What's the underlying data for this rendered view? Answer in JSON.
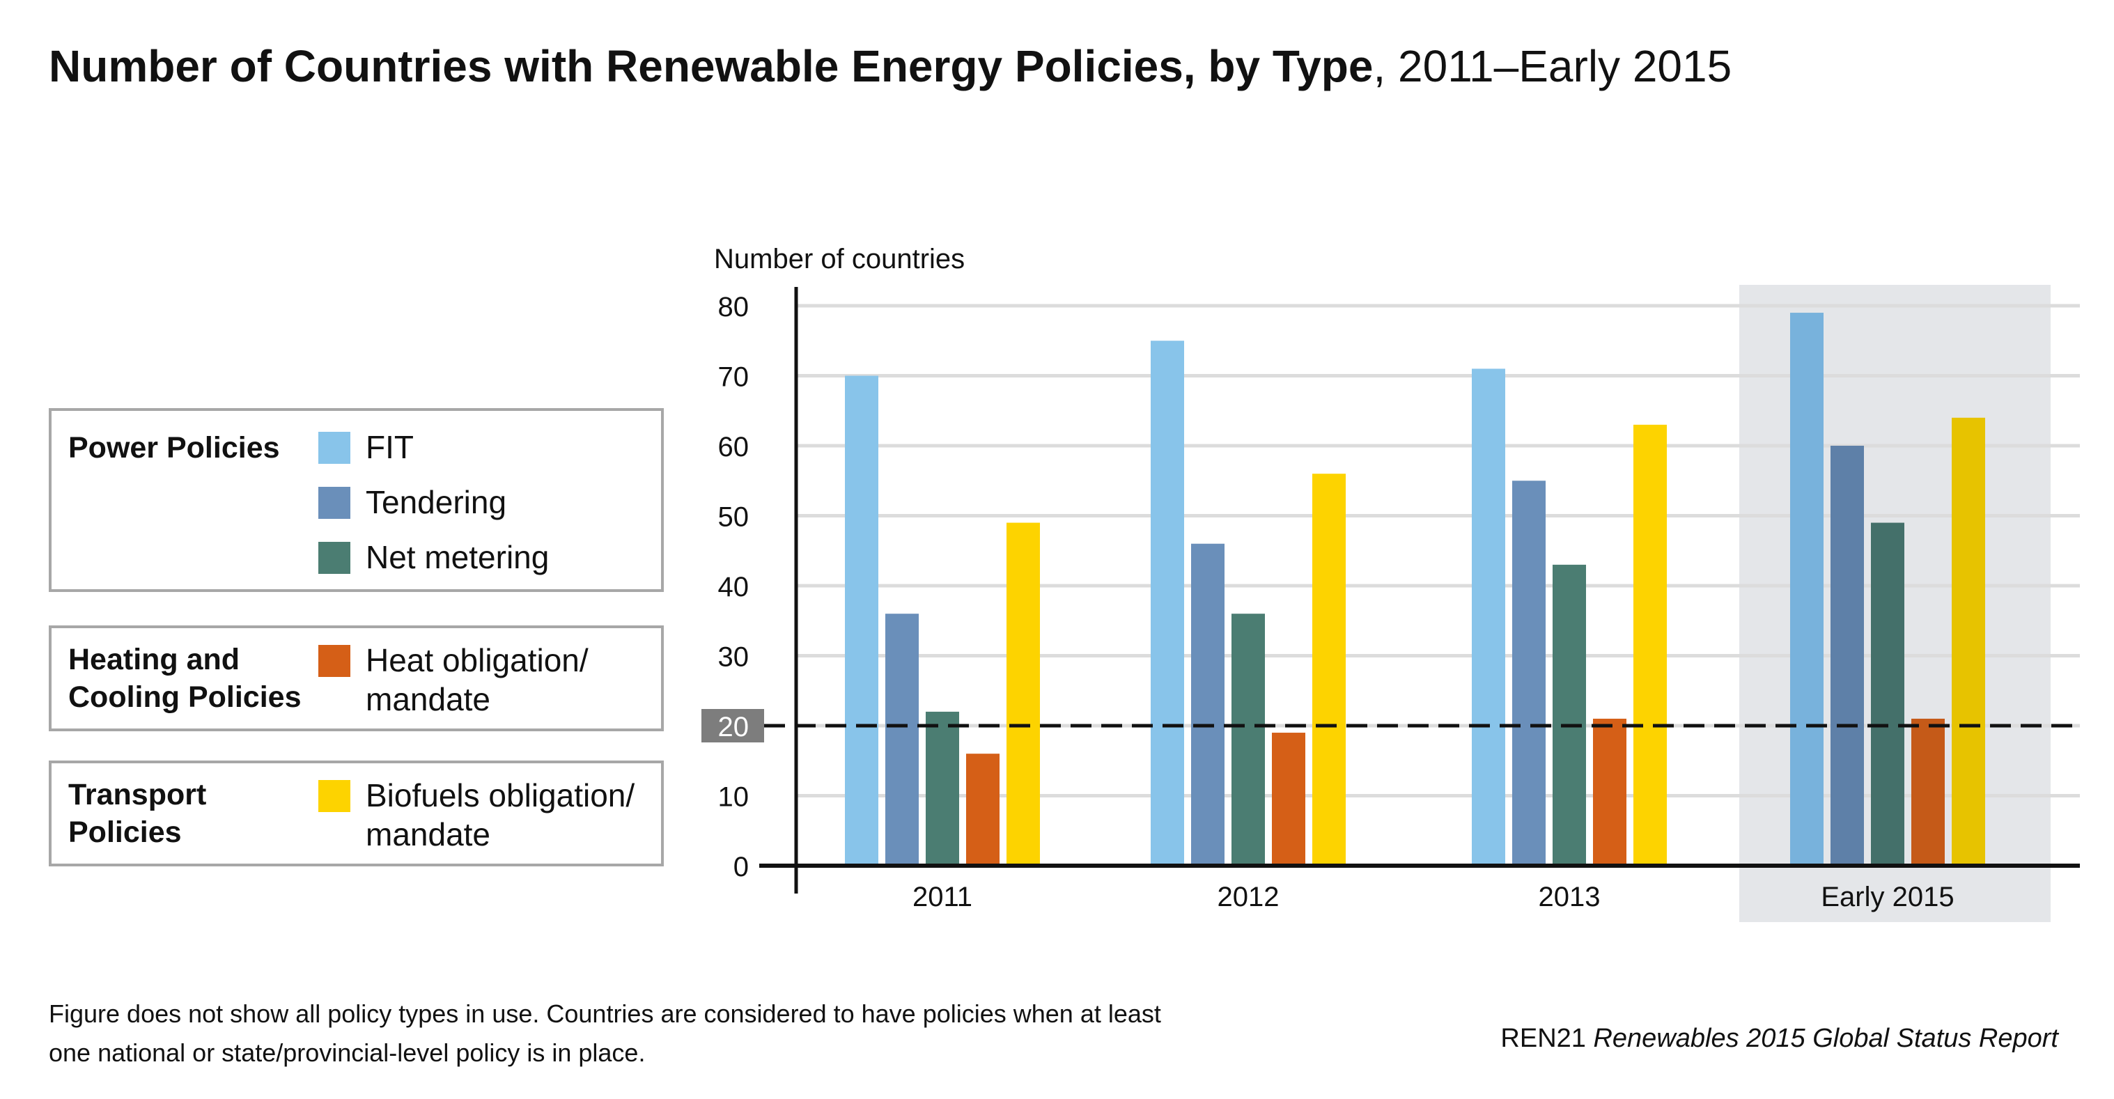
{
  "title": {
    "bold": "Number of Countries with Renewable Energy Policies, by Type",
    "light": ", 2011–Early 2015"
  },
  "legend": {
    "power": {
      "title": "Power Policies",
      "items": [
        {
          "label": "FIT",
          "color": "#88c4ea"
        },
        {
          "label": "Tendering",
          "color": "#6a8fba"
        },
        {
          "label": "Net metering",
          "color": "#4b7d72"
        }
      ]
    },
    "heating": {
      "title": "Heating and Cooling Policies",
      "item": {
        "label": "Heat obligation/ mandate",
        "color": "#d55f17"
      }
    },
    "transport": {
      "title": "Transport Policies",
      "item": {
        "label": "Biofuels obligation/ mandate",
        "color": "#fdd300"
      }
    }
  },
  "chart_data": {
    "type": "bar",
    "ylabel": "Number of countries",
    "ylim": [
      0,
      80
    ],
    "yticks": [
      0,
      10,
      20,
      30,
      40,
      50,
      60,
      70,
      80
    ],
    "grid": true,
    "reference_line": {
      "value": 20,
      "style": "dashed"
    },
    "highlighted_category": "Early 2015",
    "categories": [
      "2011",
      "2012",
      "2013",
      "Early 2015"
    ],
    "series": [
      {
        "name": "FIT",
        "color": "#88c4ea",
        "highlight_color": "#78b2dc",
        "values": [
          70,
          75,
          71,
          79
        ]
      },
      {
        "name": "Tendering",
        "color": "#6a8fba",
        "highlight_color": "#5e80a8",
        "values": [
          36,
          46,
          55,
          60
        ]
      },
      {
        "name": "Net metering",
        "color": "#4b7d72",
        "highlight_color": "#44706a",
        "values": [
          22,
          36,
          43,
          49
        ]
      },
      {
        "name": "Heat obligation/mandate",
        "color": "#d55f17",
        "highlight_color": "#c55a18",
        "values": [
          16,
          19,
          21,
          21
        ]
      },
      {
        "name": "Biofuels obligation/mandate",
        "color": "#fdd300",
        "highlight_color": "#e7c300",
        "values": [
          49,
          56,
          63,
          64
        ]
      }
    ]
  },
  "footnote": "Figure does not show all policy types in use. Countries are considered to have policies when at least one national or state/provincial-level policy is in place.",
  "source": {
    "prefix": "REN21 ",
    "italic": "Renewables 2015 Global Status Report"
  }
}
